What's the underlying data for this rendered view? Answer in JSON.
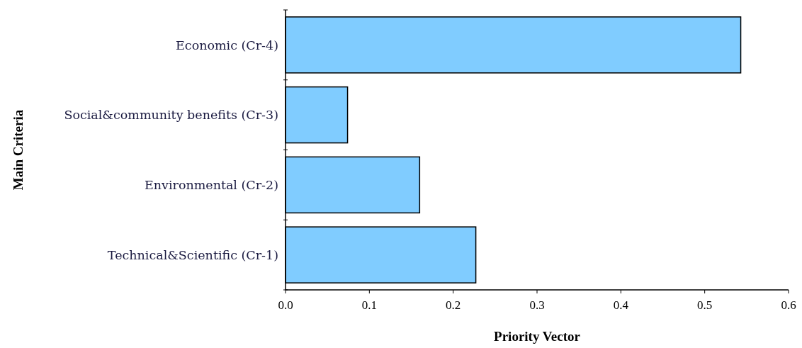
{
  "chart_data": {
    "type": "bar",
    "orientation": "horizontal",
    "xlabel": "Priority Vector",
    "ylabel": "Main Criteria",
    "categories": [
      "Economic (Cr-4)",
      "Social&community benefits (Cr-3)",
      "Environmental (Cr-2)",
      "Technical&Scientific (Cr-1)"
    ],
    "values": [
      0.543,
      0.074,
      0.16,
      0.227
    ],
    "color": "#80ccff",
    "xlim": [
      0,
      0.6
    ],
    "xticks": [
      {
        "value": 0,
        "label": "0.0"
      },
      {
        "value": 0.1,
        "label": "0.1"
      },
      {
        "value": 0.2,
        "label": "0.2"
      },
      {
        "value": 0.3,
        "label": "0.3"
      },
      {
        "value": 0.4,
        "label": "0.4"
      },
      {
        "value": 0.5,
        "label": "0.5"
      },
      {
        "value": 0.6,
        "label": "0.6"
      }
    ],
    "grid": false
  }
}
